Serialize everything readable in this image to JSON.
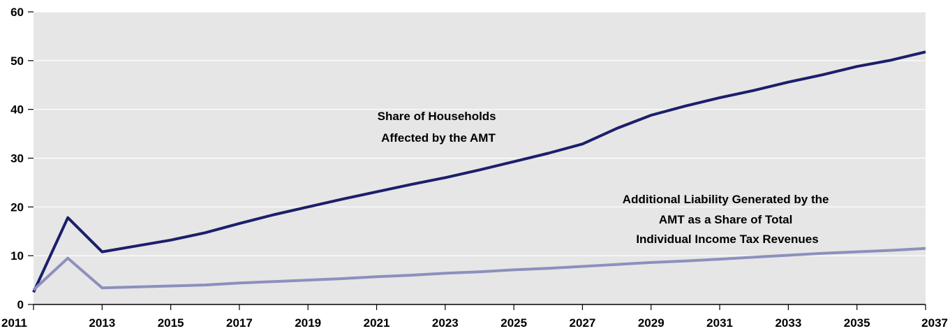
{
  "chart_data": {
    "type": "line",
    "title": "",
    "xlabel": "",
    "ylabel": "",
    "xlim": [
      2011,
      2037
    ],
    "ylim": [
      0,
      60
    ],
    "yticks": [
      0,
      10,
      20,
      30,
      40,
      50,
      60
    ],
    "xticks": [
      2011,
      2013,
      2015,
      2017,
      2019,
      2021,
      2023,
      2025,
      2027,
      2029,
      2031,
      2033,
      2035,
      2037
    ],
    "grid": true,
    "legend": "none",
    "x": [
      2011,
      2012,
      2013,
      2014,
      2015,
      2016,
      2017,
      2018,
      2019,
      2020,
      2021,
      2022,
      2023,
      2024,
      2025,
      2026,
      2027,
      2028,
      2029,
      2030,
      2031,
      2032,
      2033,
      2034,
      2035,
      2036,
      2037
    ],
    "series": [
      {
        "label_lines": [
          "Share of Households",
          "Affected by the AMT"
        ],
        "color": "#1b1f6b",
        "values": [
          2.5,
          17.8,
          10.8,
          12.0,
          13.2,
          14.7,
          16.6,
          18.4,
          20.0,
          21.6,
          23.1,
          24.6,
          26.0,
          27.6,
          29.3,
          31.0,
          32.9,
          36.1,
          38.8,
          40.7,
          42.4,
          43.9,
          45.6,
          47.1,
          48.8,
          50.1,
          51.8
        ]
      },
      {
        "label_lines": [
          "Additional Liability Generated by the",
          "AMT as a Share of Total",
          "Individual Income Tax Revenues"
        ],
        "color": "#8d90bd",
        "values": [
          3.0,
          9.5,
          3.4,
          3.6,
          3.8,
          4.0,
          4.4,
          4.7,
          5.0,
          5.3,
          5.7,
          6.0,
          6.4,
          6.7,
          7.1,
          7.4,
          7.8,
          8.2,
          8.6,
          8.9,
          9.3,
          9.7,
          10.1,
          10.5,
          10.8,
          11.1,
          11.5
        ]
      }
    ]
  }
}
